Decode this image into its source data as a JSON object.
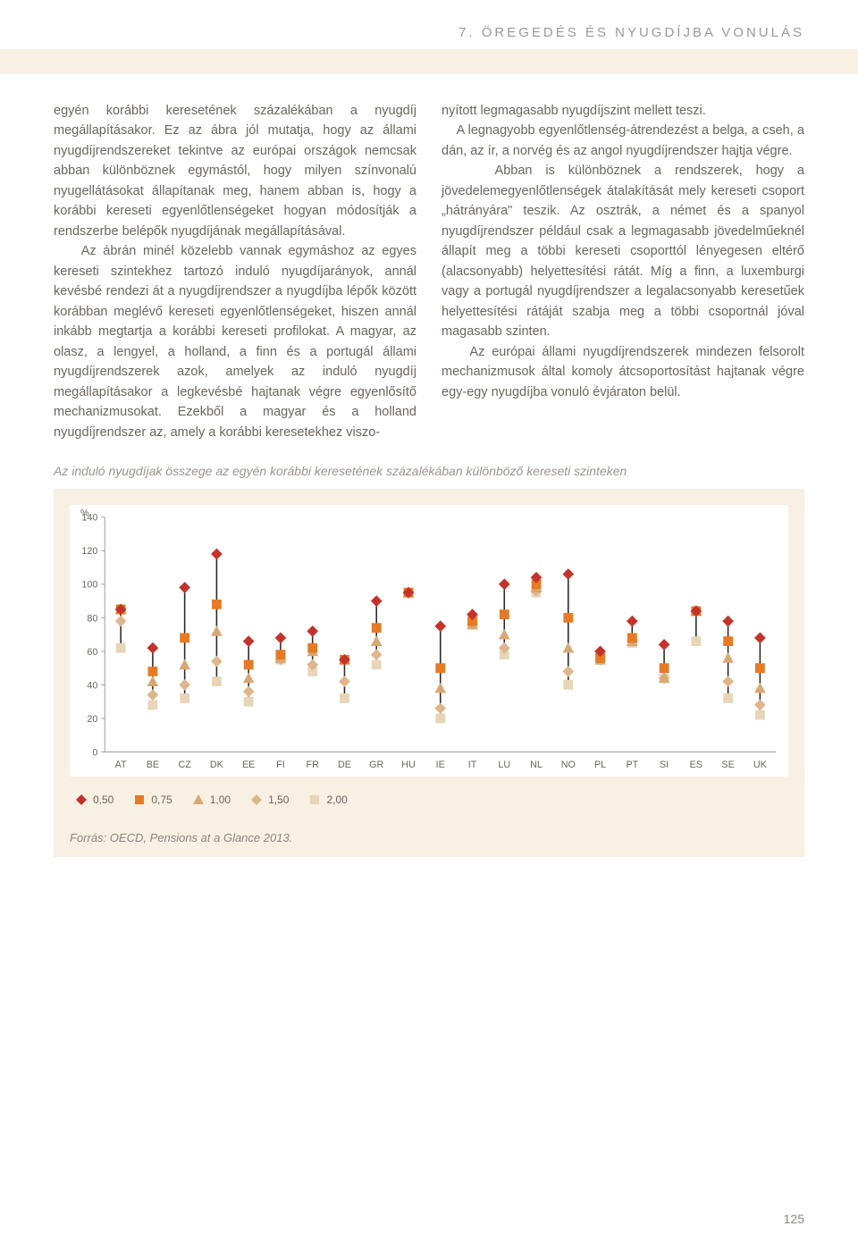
{
  "header": "7. ÖREGEDÉS ÉS NYUGDÍJBA VONULÁS",
  "page_number": "125",
  "left_column": "egyén korábbi keresetének százalékában a nyugdíj megállapításakor. Ez az ábra jól mutatja, hogy az állami nyugdíjrendszereket tekintve az európai országok nemcsak abban különböznek egymástól, hogy milyen színvonalú nyugellátásokat állapítanak meg, hanem abban is, hogy a korábbi kereseti egyenlőtlenségeket hogyan módosítják a rendszerbe belépők nyugdíjának megállapításával.\n    Az ábrán minél közelebb vannak egymáshoz az egyes kereseti szintekhez tartozó induló nyugdíjarányok, annál kevésbé rendezi át a nyugdíjrendszer a nyugdíjba lépők között korábban meglévő kereseti egyenlőtlenségeket, hiszen annál inkább megtartja a korábbi kereseti profilokat. A magyar, az olasz, a lengyel, a holland, a finn és a portugál állami nyugdíjrendszerek azok, amelyek az induló nyugdíj megállapításakor a legkevésbé hajtanak végre egyenlősítő mechanizmusokat. Ezekből a magyar és a holland nyugdíjrendszer az, amely a korábbi keresetekhez viszo-",
  "right_column": "nyított legmagasabb nyugdíjszint mellett teszi.\n    A legnagyobb egyenlőtlenség-átrendezést a belga, a cseh, a dán, az ír, a norvég és az angol nyugdíjrendszer hajtja végre.\n    Abban is különböznek a rendszerek, hogy a jövedelemegyenlőtlenségek átalakítását mely kereseti csoport „hátrányára\" teszik. Az osztrák, a német és a spanyol nyugdíjrendszer például csak a legmagasabb jövedelműeknél állapít meg a többi kereseti csoporttól lényegesen eltérő (alacsonyabb) helyettesítési rátát. Míg a finn, a luxemburgi vagy a portugál nyugdíjrendszer a legalacsonyabb keresetűek helyettesítési rátáját szabja meg a többi csoportnál jóval magasabb szinten.\n    Az európai állami nyugdíjrendszerek mindezen felsorolt mechanizmusok által komoly átcsoportosítást hajtanak végre egy-egy nyugdíjba vonuló évjáraton belül.",
  "chart": {
    "type": "dot-range",
    "title": "Az induló nyugdíjak összege az egyén korábbi  keresetének százalékában különböző kereseti szinteken",
    "source": "Forrás: OECD, Pensions at a Glance 2013.",
    "y_label_unit": "%",
    "y_axis": {
      "min": 0,
      "max": 140,
      "step": 20
    },
    "categories": [
      "AT",
      "BE",
      "CZ",
      "DK",
      "EE",
      "FI",
      "FR",
      "DE",
      "GR",
      "HU",
      "IE",
      "IT",
      "LU",
      "NL",
      "NO",
      "PL",
      "PT",
      "SI",
      "ES",
      "SE",
      "UK"
    ],
    "series_labels": [
      "0,50",
      "0,75",
      "1,00",
      "1,50",
      "2,00"
    ],
    "series_colors": [
      "#c4332b",
      "#e67a25",
      "#d8a874",
      "#dfb68c",
      "#e8d5b8"
    ],
    "series_shapes": [
      "diamond",
      "square",
      "triangle",
      "diamond",
      "square"
    ],
    "plot_bg": "#ffffff",
    "box_bg": "#f7f0e3",
    "axis_color": "#9a9a9a",
    "tick_font_size": 11,
    "label_font_size": 11,
    "legend_font_size": 12,
    "data": {
      "AT": [
        85,
        85,
        85,
        78,
        62
      ],
      "BE": [
        62,
        48,
        42,
        34,
        28
      ],
      "CZ": [
        98,
        68,
        52,
        40,
        32
      ],
      "DK": [
        118,
        88,
        72,
        54,
        42
      ],
      "EE": [
        66,
        52,
        44,
        36,
        30
      ],
      "FI": [
        68,
        58,
        56,
        55,
        55
      ],
      "FR": [
        72,
        62,
        60,
        52,
        48
      ],
      "DE": [
        55,
        55,
        55,
        42,
        32
      ],
      "GR": [
        90,
        74,
        66,
        58,
        52
      ],
      "HU": [
        95,
        95,
        95,
        95,
        95
      ],
      "IE": [
        75,
        50,
        38,
        26,
        20
      ],
      "IT": [
        82,
        78,
        76,
        76,
        76
      ],
      "LU": [
        100,
        82,
        70,
        62,
        58
      ],
      "NL": [
        104,
        100,
        98,
        96,
        95
      ],
      "NO": [
        106,
        80,
        62,
        48,
        40
      ],
      "PL": [
        60,
        56,
        55,
        55,
        55
      ],
      "PT": [
        78,
        68,
        66,
        66,
        65
      ],
      "SI": [
        64,
        50,
        44,
        44,
        44
      ],
      "ES": [
        84,
        84,
        84,
        84,
        66
      ],
      "SE": [
        78,
        66,
        56,
        42,
        32
      ],
      "UK": [
        68,
        50,
        38,
        28,
        22
      ]
    }
  }
}
